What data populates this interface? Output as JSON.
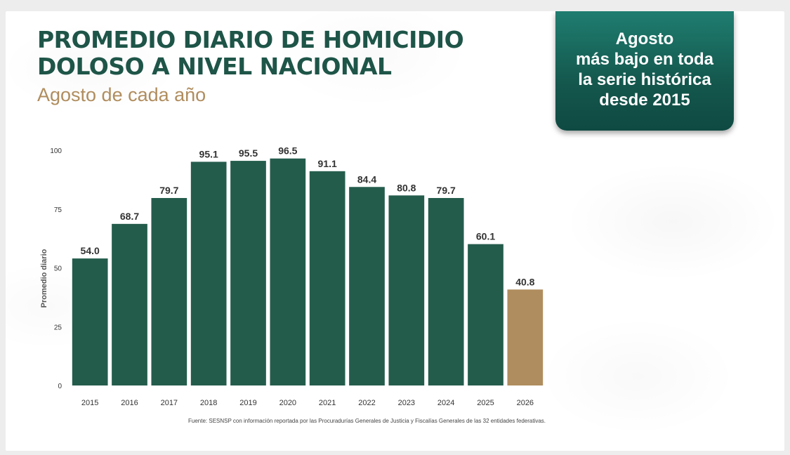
{
  "header": {
    "title": "PROMEDIO DIARIO DE HOMICIDIO DOLOSO A NIVEL NACIONAL",
    "subtitle": "Agosto de cada año"
  },
  "callout": {
    "text": "Agosto\nmás bajo en toda\nla serie histórica\ndesde 2015"
  },
  "footer": {
    "source": "Fuente: SESNSP con información reportada por las Procuradurías Generales de Justicia y Fiscalías Generales de las 32 entidades federativas."
  },
  "colors": {
    "bar": "#245c4c",
    "highlight": "#b08d5e",
    "title": "#1e5548",
    "subtitle": "#b08d5e"
  },
  "chart_data": {
    "type": "bar",
    "title": "PROMEDIO DIARIO DE HOMICIDIO DOLOSO A NIVEL NACIONAL",
    "subtitle": "Agosto de cada año",
    "ylabel": "Promedio diario",
    "xlabel": "",
    "categories": [
      "2015",
      "2016",
      "2017",
      "2018",
      "2019",
      "2020",
      "2021",
      "2022",
      "2023",
      "2024",
      "2025",
      "2026"
    ],
    "values": [
      54.0,
      68.7,
      79.7,
      95.1,
      95.5,
      96.5,
      91.1,
      84.4,
      80.8,
      79.7,
      60.1,
      40.8
    ],
    "value_labels": [
      "54.0",
      "68.7",
      "79.7",
      "95.1",
      "95.5",
      "96.5",
      "91.1",
      "84.4",
      "80.8",
      "79.7",
      "60.1",
      "40.8"
    ],
    "highlight_category": "2026",
    "ylim": [
      0,
      100
    ],
    "yticks": [
      0,
      25,
      50,
      75,
      100
    ],
    "grid": false,
    "legend": "none"
  }
}
